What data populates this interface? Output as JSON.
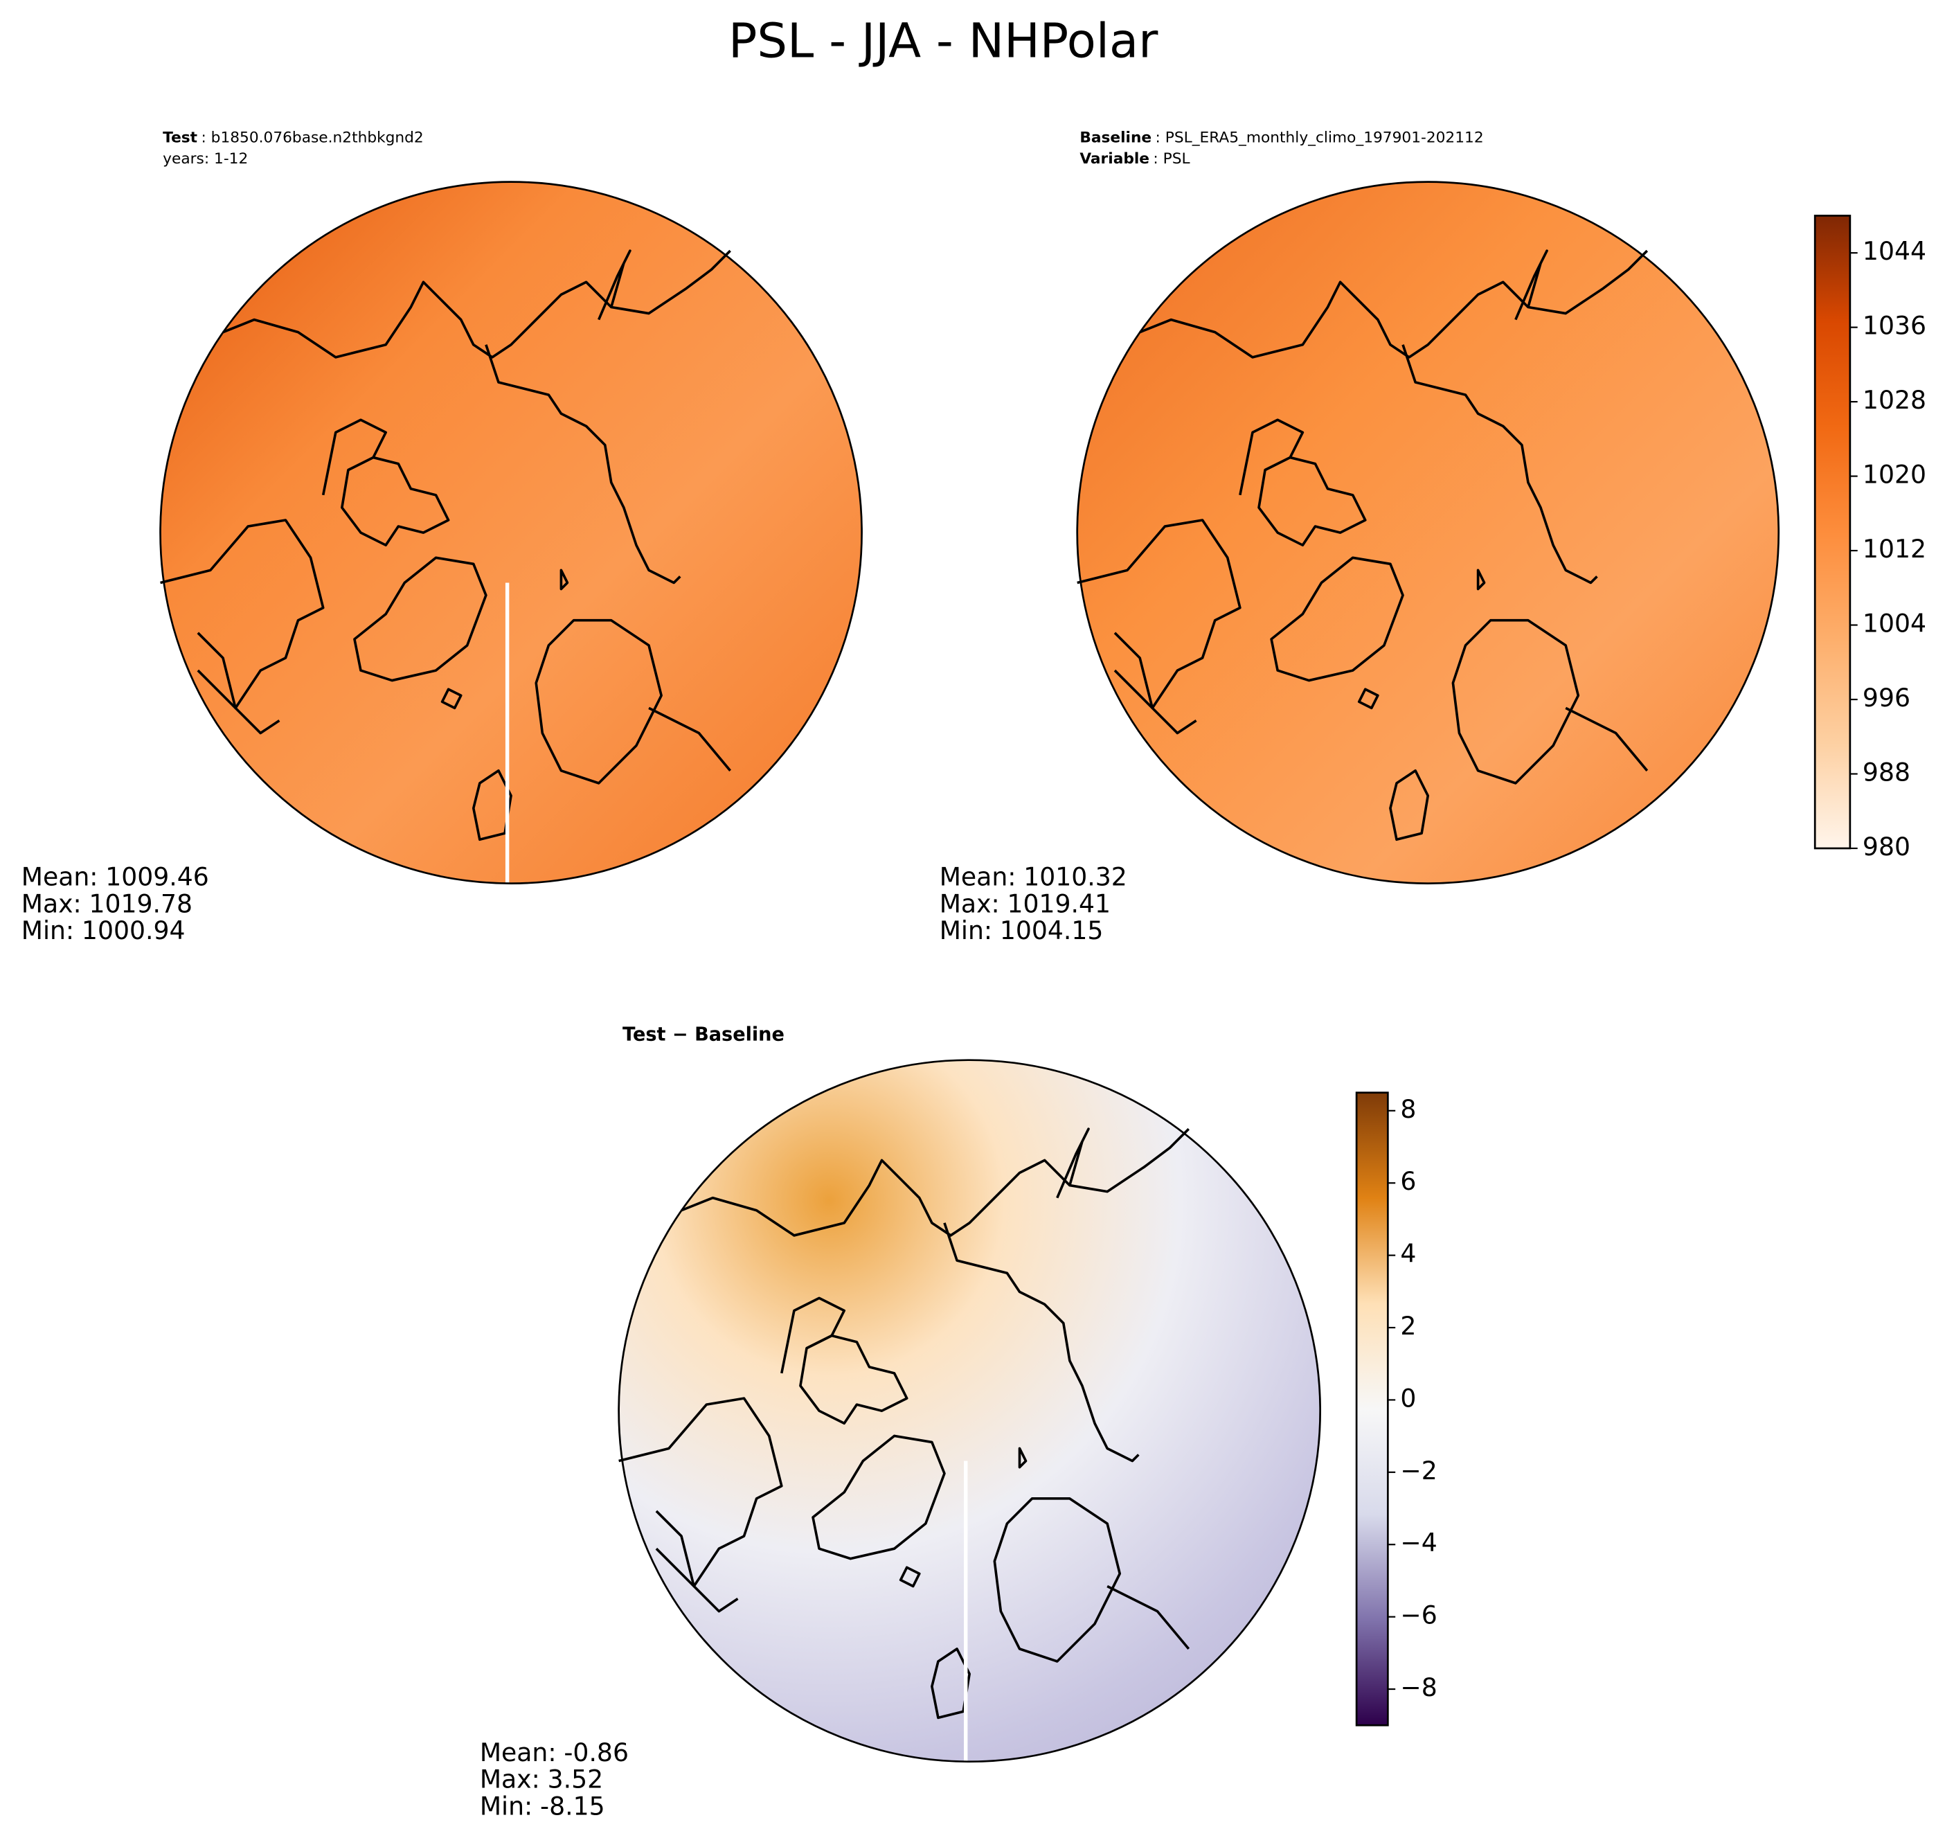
{
  "title": "PSL - JJA - NHPolar",
  "panels": [
    {
      "header": [
        {
          "label": "Test",
          "text": ": b1850.076base.n2thbkgnd2"
        },
        {
          "text": "years: 1-12"
        }
      ],
      "stats": [
        {
          "label": "Mean:",
          "value": 1009.46
        },
        {
          "label": "Max:",
          "value": 1019.78
        },
        {
          "label": "Min:",
          "value": 1000.94
        }
      ]
    },
    {
      "header": [
        {
          "label": "Baseline",
          "text": ": PSL_ERA5_monthly_climo_197901-202112"
        },
        {
          "label": "Variable",
          "text": ": PSL"
        }
      ],
      "stats": [
        {
          "label": "Mean:",
          "value": 1010.32
        },
        {
          "label": "Max:",
          "value": 1019.41
        },
        {
          "label": "Min:",
          "value": 1004.15
        }
      ]
    },
    {
      "header": [
        {
          "label": "Test − Baseline"
        }
      ],
      "stats": [
        {
          "label": "Mean:",
          "value": -0.86
        },
        {
          "label": "Max:",
          "value": 3.52
        },
        {
          "label": "Min:",
          "value": -8.15
        }
      ]
    }
  ],
  "colorbars": [
    {
      "ylim": [
        980,
        1048
      ],
      "ticks": [
        980,
        988,
        996,
        1004,
        1012,
        1020,
        1028,
        1036,
        1044
      ],
      "colors": [
        "#fff5eb",
        "#fdd0a2",
        "#fdae6b",
        "#fd8d3c",
        "#f16913",
        "#d94801",
        "#7f2704"
      ]
    },
    {
      "ylim": [
        -9,
        8.5
      ],
      "ticks": [
        {
          "value": -8,
          "label": "−8"
        },
        {
          "value": -6,
          "label": "−6"
        },
        {
          "value": -4,
          "label": "−4"
        },
        {
          "value": -2,
          "label": "−2"
        },
        0,
        2,
        4,
        6,
        8
      ],
      "colors": [
        "#2d004b",
        "#8073ac",
        "#d8daeb",
        "#f7f7f7",
        "#fee0b6",
        "#e08214",
        "#7f3b08"
      ]
    }
  ]
}
